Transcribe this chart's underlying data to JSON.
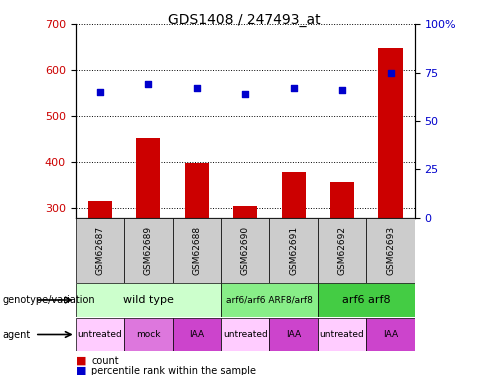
{
  "title": "GDS1408 / 247493_at",
  "samples": [
    "GSM62687",
    "GSM62689",
    "GSM62688",
    "GSM62690",
    "GSM62691",
    "GSM62692",
    "GSM62693"
  ],
  "bar_values": [
    315,
    453,
    399,
    305,
    378,
    358,
    648
  ],
  "scatter_values": [
    65,
    69,
    67,
    64,
    67,
    66,
    75
  ],
  "ylim_left": [
    280,
    700
  ],
  "ylim_right": [
    0,
    100
  ],
  "bar_color": "#cc0000",
  "scatter_color": "#0000cc",
  "left_yticks": [
    300,
    400,
    500,
    600,
    700
  ],
  "left_yticklabels": [
    "300",
    "400",
    "500",
    "600",
    "700"
  ],
  "right_yticks": [
    0,
    25,
    50,
    75,
    100
  ],
  "right_yticklabels": [
    "0",
    "25",
    "50",
    "75",
    "100%"
  ],
  "genotype_groups": [
    {
      "label": "wild type",
      "start": 0,
      "end": 3,
      "color": "#ccffcc",
      "font_size": 8
    },
    {
      "label": "arf6/arf6 ARF8/arf8",
      "start": 3,
      "end": 5,
      "color": "#88ee88",
      "font_size": 6.5
    },
    {
      "label": "arf6 arf8",
      "start": 5,
      "end": 7,
      "color": "#44cc44",
      "font_size": 8
    }
  ],
  "agent_cells": [
    {
      "label": "untreated",
      "start": 0,
      "end": 1,
      "color": "#ffccff"
    },
    {
      "label": "mock",
      "start": 1,
      "end": 2,
      "color": "#dd77dd"
    },
    {
      "label": "IAA",
      "start": 2,
      "end": 3,
      "color": "#cc44cc"
    },
    {
      "label": "untreated",
      "start": 3,
      "end": 4,
      "color": "#ffccff"
    },
    {
      "label": "IAA",
      "start": 4,
      "end": 5,
      "color": "#cc44cc"
    },
    {
      "label": "untreated",
      "start": 5,
      "end": 6,
      "color": "#ffccff"
    },
    {
      "label": "IAA",
      "start": 6,
      "end": 7,
      "color": "#cc44cc"
    }
  ],
  "sample_bg_color": "#cccccc",
  "left_label_color": "#cc0000",
  "right_label_color": "#0000cc",
  "legend_bar_label": "count",
  "legend_scatter_label": "percentile rank within the sample",
  "geno_label": "genotype/variation",
  "agent_label": "agent"
}
